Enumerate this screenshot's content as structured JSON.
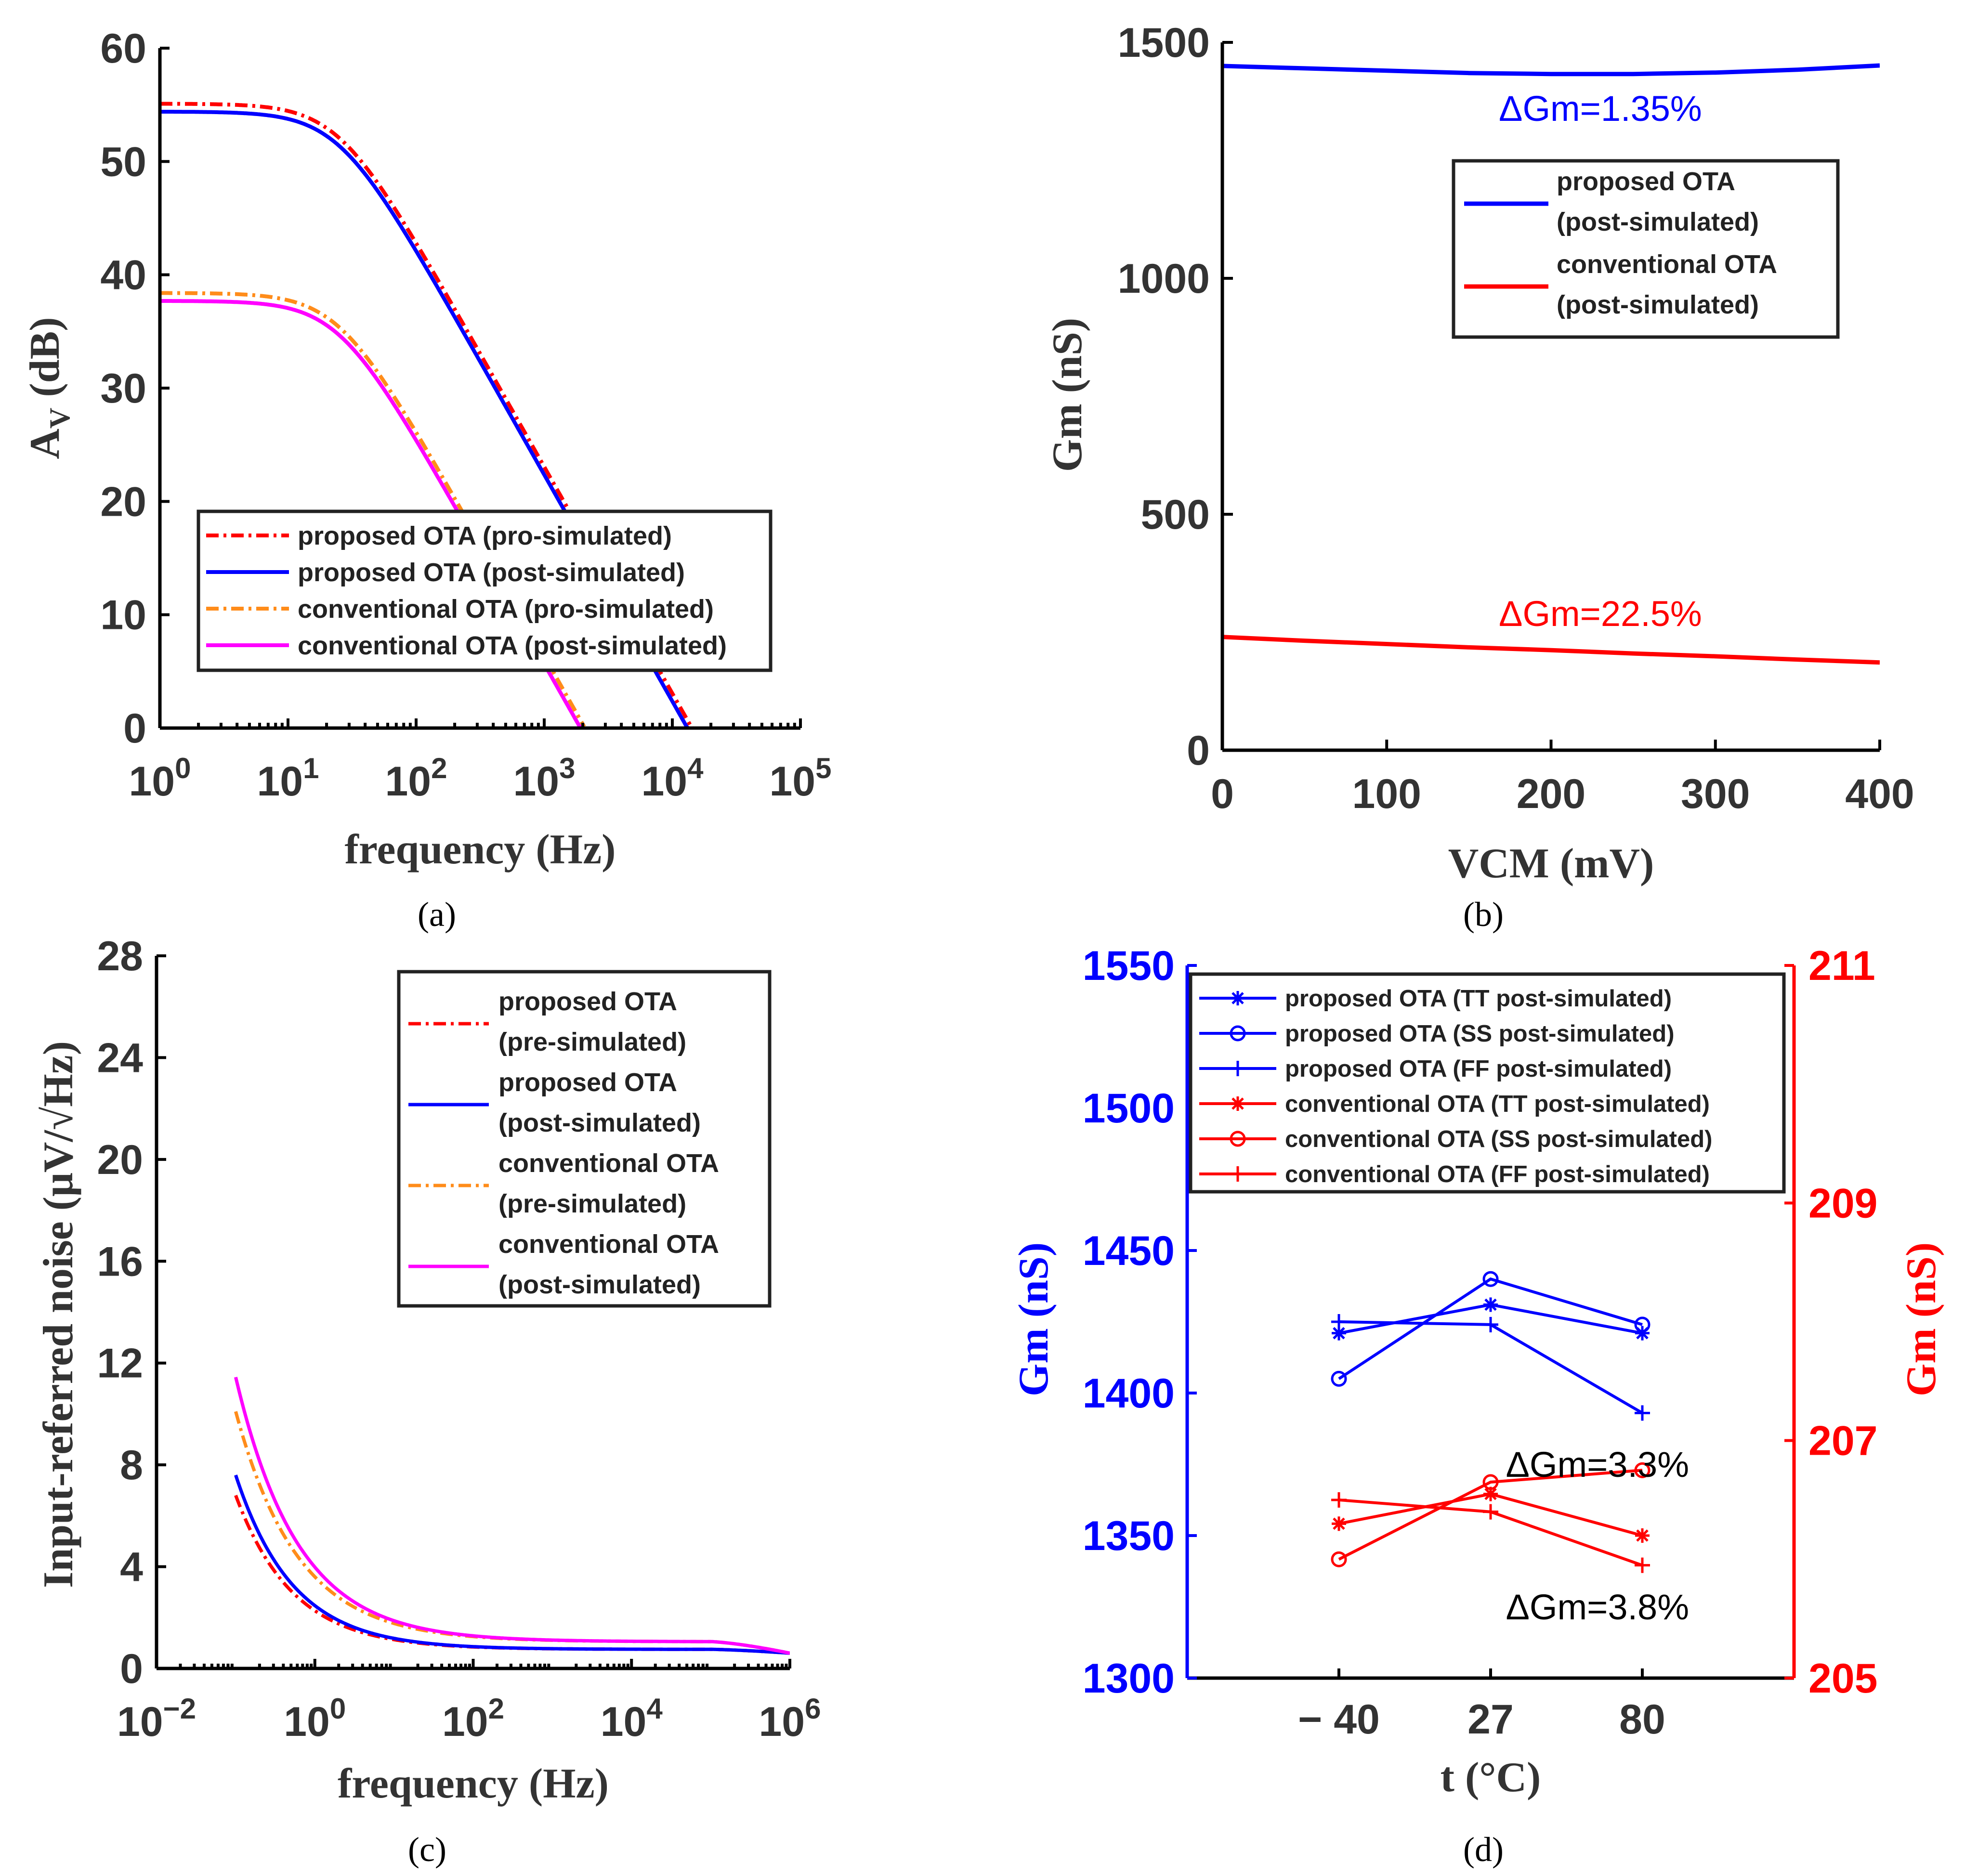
{
  "panels": {
    "a": "(a)",
    "b": "(b)",
    "c": "(c)",
    "d": "(d)"
  },
  "colors": {
    "blue": "#0000ff",
    "red": "#ff0000",
    "orange": "#ff8c1a",
    "magenta": "#ff00ff",
    "black": "#000000"
  },
  "chart_data": [
    {
      "id": "a",
      "type": "line",
      "title": "",
      "xlabel": "frequency  (Hz)",
      "ylabel_main": "A",
      "ylabel_sub": "V",
      "ylabel_unit": " (dB)",
      "xscale": "log",
      "xlim": [
        1,
        100000
      ],
      "ylim": [
        0,
        60
      ],
      "xticks": [
        1,
        10,
        100,
        1000,
        10000,
        100000
      ],
      "xtick_labels": [
        {
          "base": "10",
          "exp": "0"
        },
        {
          "base": "10",
          "exp": "1"
        },
        {
          "base": "10",
          "exp": "2"
        },
        {
          "base": "10",
          "exp": "3"
        },
        {
          "base": "10",
          "exp": "4"
        },
        {
          "base": "10",
          "exp": "5"
        }
      ],
      "yticks": [
        0,
        10,
        20,
        30,
        40,
        50,
        60
      ],
      "ytick_labels": [
        "0",
        "10",
        "20",
        "30",
        "40",
        "50",
        "60"
      ],
      "legend_position": "center-bottom",
      "series": [
        {
          "name": "proposed OTA (pro-simulated)",
          "color": "#ff0000",
          "style": "dashdot",
          "model": "lowpass",
          "dc_gain": 55.1,
          "pole_hz": 25,
          "x_end": 14500
        },
        {
          "name": "proposed OTA (post-simulated)",
          "color": "#0000ff",
          "style": "solid",
          "model": "lowpass",
          "dc_gain": 54.4,
          "pole_hz": 25,
          "x_end": 13500
        },
        {
          "name": "conventional OTA (pro-simulated)",
          "color": "#ff8c1a",
          "style": "dashdot",
          "model": "lowpass",
          "dc_gain": 38.4,
          "pole_hz": 25,
          "x_end": 2050
        },
        {
          "name": "conventional OTA (post-simulated)",
          "color": "#ff00ff",
          "style": "solid",
          "model": "lowpass",
          "dc_gain": 37.7,
          "pole_hz": 25,
          "x_end": 1900
        }
      ]
    },
    {
      "id": "b",
      "type": "line",
      "title": "",
      "xlabel": "VCM (mV)",
      "ylabel": "Gm (nS)",
      "xlim": [
        0,
        400
      ],
      "ylim": [
        0,
        1500
      ],
      "xticks": [
        0,
        100,
        200,
        300,
        400
      ],
      "xtick_labels": [
        "0",
        "100",
        "200",
        "300",
        "400"
      ],
      "yticks": [
        0,
        500,
        1000,
        1500
      ],
      "ytick_labels": [
        "0",
        "500",
        "1000",
        "1500"
      ],
      "legend_position": "top-right",
      "series": [
        {
          "name_line1": "proposed OTA",
          "name_line2": "(post-simulated)",
          "color": "#0000ff",
          "style": "solid",
          "x": [
            0,
            50,
            100,
            150,
            200,
            250,
            300,
            350,
            400
          ],
          "y": [
            1450,
            1445,
            1440,
            1435,
            1433,
            1433,
            1436,
            1442,
            1451
          ]
        },
        {
          "name_line1": "conventional OTA",
          "name_line2": "(post-simulated)",
          "color": "#ff0000",
          "style": "solid",
          "x": [
            0,
            50,
            100,
            150,
            200,
            250,
            300,
            350,
            400
          ],
          "y": [
            240,
            232,
            225,
            218,
            212,
            205,
            199,
            192,
            186
          ]
        }
      ],
      "annotations": [
        {
          "text": "ΔGm=1.35%",
          "color": "#0000ff",
          "x": 230,
          "y": 1360
        },
        {
          "text": "ΔGm=22.5%",
          "color": "#ff0000",
          "x": 230,
          "y": 290
        }
      ]
    },
    {
      "id": "c",
      "type": "line",
      "title": "",
      "xlabel": "frequency (Hz)",
      "ylabel": "Input-referred noise (μV/√Hz)",
      "xscale": "log",
      "xlim": [
        0.01,
        1000000
      ],
      "ylim": [
        0,
        28
      ],
      "xticks": [
        0.01,
        1,
        100,
        10000,
        1000000
      ],
      "xtick_labels": [
        {
          "base": "10",
          "exp": "−2"
        },
        {
          "base": "10",
          "exp": "0"
        },
        {
          "base": "10",
          "exp": "2"
        },
        {
          "base": "10",
          "exp": "4"
        },
        {
          "base": "10",
          "exp": "6"
        }
      ],
      "yticks": [
        0,
        4,
        8,
        12,
        16,
        20,
        24,
        28
      ],
      "ytick_labels": [
        "0",
        "4",
        "8",
        "12",
        "16",
        "20",
        "24",
        "28"
      ],
      "legend_position": "top-right",
      "series": [
        {
          "name_line1": "proposed OTA",
          "name_line2": "(pre-simulated)",
          "color": "#ff0000",
          "style": "dashdot",
          "model": "flicker",
          "floor": 0.75,
          "k": 1.52,
          "alpha": 0.6,
          "x_start": 0.1,
          "x_end": 1000000
        },
        {
          "name_line1": "proposed OTA",
          "name_line2": "(post-simulated)",
          "color": "#0000ff",
          "style": "solid",
          "model": "flicker",
          "floor": 0.75,
          "k": 1.72,
          "alpha": 0.6,
          "x_start": 0.1,
          "x_end": 1000000
        },
        {
          "name_line1": "conventional OTA",
          "name_line2": "(pre-simulated)",
          "color": "#ff8c1a",
          "style": "dashdot",
          "model": "flicker",
          "floor": 1.05,
          "k": 2.55,
          "alpha": 0.55,
          "x_start": 0.1,
          "x_end": 1000000
        },
        {
          "name_line1": "conventional OTA",
          "name_line2": "(post-simulated)",
          "color": "#ff00ff",
          "style": "solid",
          "model": "flicker",
          "floor": 1.05,
          "k": 2.93,
          "alpha": 0.55,
          "x_start": 0.1,
          "x_end": 1000000
        }
      ]
    },
    {
      "id": "d",
      "type": "line",
      "title": "",
      "xlabel": "t (°C)",
      "ylabel_left": "Gm (nS)",
      "ylabel_right": "Gm (nS)",
      "x_categories": [
        "− 40",
        "27",
        "80"
      ],
      "xlim": [
        -1,
        3
      ],
      "ylim_left": [
        1300,
        1550
      ],
      "ylim_right": [
        205,
        211
      ],
      "yticks_left": [
        1300,
        1350,
        1400,
        1450,
        1500,
        1550
      ],
      "ytick_labels_left": [
        "1300",
        "1350",
        "1400",
        "1450",
        "1500",
        "1550"
      ],
      "yticks_right": [
        205,
        207,
        209,
        211
      ],
      "ytick_labels_right": [
        "205",
        "207",
        "209",
        "211"
      ],
      "legend_position": "top",
      "series": [
        {
          "name": "proposed OTA (TT post-simulated)",
          "axis": "left",
          "color": "#0000ff",
          "marker": "asterisk",
          "values": [
            1421,
            1431,
            1421
          ]
        },
        {
          "name": "proposed OTA (SS post-simulated)",
          "axis": "left",
          "color": "#0000ff",
          "marker": "circle",
          "values": [
            1405,
            1440,
            1424
          ]
        },
        {
          "name": "proposed OTA (FF post-simulated)",
          "axis": "left",
          "color": "#0000ff",
          "marker": "plus",
          "values": [
            1425,
            1424,
            1393
          ]
        },
        {
          "name": "conventional OTA (TT post-simulated)",
          "axis": "right",
          "color": "#ff0000",
          "marker": "asterisk",
          "values": [
            206.3,
            206.55,
            206.2
          ]
        },
        {
          "name": "conventional OTA (SS post-simulated)",
          "axis": "right",
          "color": "#ff0000",
          "marker": "circle",
          "values": [
            206.0,
            206.65,
            206.75
          ]
        },
        {
          "name": "conventional OTA (FF post-simulated)",
          "axis": "right",
          "color": "#ff0000",
          "marker": "plus",
          "values": [
            206.5,
            206.4,
            205.95
          ]
        }
      ],
      "annotations": [
        {
          "text": "ΔGm=3.3%",
          "color": "#000000",
          "x": 1.1,
          "y_left": 1375
        },
        {
          "text": "ΔGm=3.8%",
          "color": "#000000",
          "x": 1.1,
          "y_left": 1325
        }
      ]
    }
  ]
}
